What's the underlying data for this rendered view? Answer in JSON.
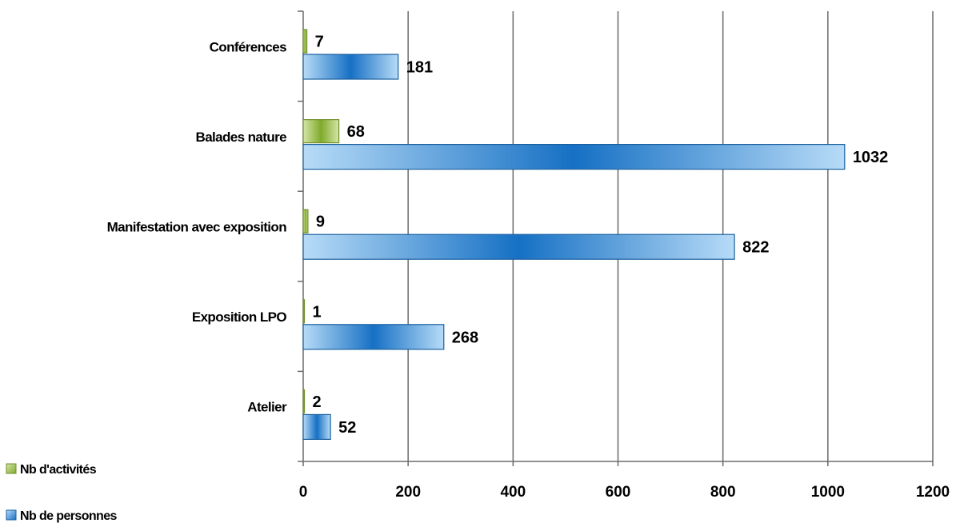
{
  "chart_data": {
    "type": "bar",
    "orientation": "horizontal",
    "categories": [
      "Conférences",
      "Balades nature",
      "Manifestation avec exposition",
      "Exposition LPO",
      "Atelier"
    ],
    "series": [
      {
        "name": "Nb d'activités",
        "values": [
          7,
          68,
          9,
          1,
          2
        ],
        "color": "#8db33a"
      },
      {
        "name": "Nb de personnes",
        "values": [
          181,
          1032,
          822,
          268,
          52
        ],
        "color": "#1f7ac9"
      }
    ],
    "xlim": [
      0,
      1200
    ],
    "xticks": [
      "0",
      "200",
      "400",
      "600",
      "800",
      "1000",
      "1200"
    ],
    "grid": "vertical",
    "legend_position": "bottom-left",
    "data_labels": true
  }
}
